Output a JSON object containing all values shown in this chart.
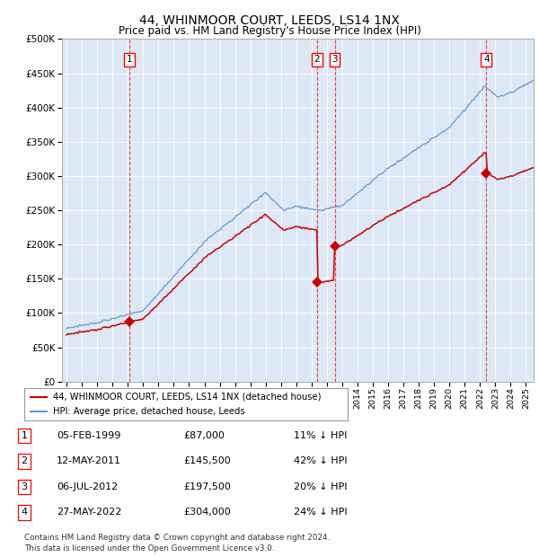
{
  "title": "44, WHINMOOR COURT, LEEDS, LS14 1NX",
  "subtitle": "Price paid vs. HM Land Registry's House Price Index (HPI)",
  "plot_bg_color": "#dce8f5",
  "hpi_color": "#6699cc",
  "price_color": "#cc0000",
  "ylim": [
    0,
    500000
  ],
  "yticks": [
    0,
    50000,
    100000,
    150000,
    200000,
    250000,
    300000,
    350000,
    400000,
    450000,
    500000
  ],
  "xlim_start": 1994.7,
  "xlim_end": 2025.5,
  "sales": [
    {
      "num": 1,
      "date_x": 1999.09,
      "price": 87000
    },
    {
      "num": 2,
      "date_x": 2011.36,
      "price": 145500
    },
    {
      "num": 3,
      "date_x": 2012.51,
      "price": 197500
    },
    {
      "num": 4,
      "date_x": 2022.41,
      "price": 304000
    }
  ],
  "legend_label_price": "44, WHINMOOR COURT, LEEDS, LS14 1NX (detached house)",
  "legend_label_hpi": "HPI: Average price, detached house, Leeds",
  "footer_line1": "Contains HM Land Registry data © Crown copyright and database right 2024.",
  "footer_line2": "This data is licensed under the Open Government Licence v3.0.",
  "table_rows": [
    [
      "1",
      "05-FEB-1999",
      "£87,000",
      "11% ↓ HPI"
    ],
    [
      "2",
      "12-MAY-2011",
      "£145,500",
      "42% ↓ HPI"
    ],
    [
      "3",
      "06-JUL-2012",
      "£197,500",
      "20% ↓ HPI"
    ],
    [
      "4",
      "27-MAY-2022",
      "£304,000",
      "24% ↓ HPI"
    ]
  ]
}
